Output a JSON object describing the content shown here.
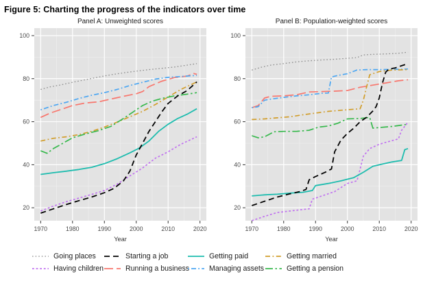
{
  "figure": {
    "title": "Figure 5: Charting the progress of the indicators over time"
  },
  "colors": {
    "panel_bg": "#e3e3e3",
    "grid_major": "#ffffff",
    "grid_minor": "#ededed",
    "tick": "#333333",
    "tick_label": "#4a4a4a",
    "panel_title": "#1a1a1a",
    "axis_label": "#333333"
  },
  "chart_data": {
    "type": "line",
    "xlabel": "Year",
    "x_ticks": [
      1970,
      1980,
      1990,
      2000,
      2010,
      2020
    ],
    "y_ticks": [
      20,
      40,
      60,
      80,
      100
    ],
    "x_minor": [
      1975,
      1985,
      1995,
      2005,
      2015
    ],
    "y_minor": [
      30,
      50,
      70,
      90
    ],
    "x_range": [
      1968,
      2022
    ],
    "y_range": [
      14,
      103.5
    ],
    "legend_order": [
      "going_places",
      "starting_job",
      "getting_paid",
      "getting_married",
      "having_children",
      "running_business",
      "managing_assets",
      "getting_pension"
    ],
    "draw_order": [
      "going_places",
      "running_business",
      "managing_assets",
      "getting_married",
      "getting_pension",
      "having_children",
      "getting_paid",
      "starting_job"
    ],
    "series_styles": {
      "going_places": {
        "label": "Going places",
        "color": "#8b8b8b",
        "dash": "1.6 3",
        "width": 1.3
      },
      "starting_job": {
        "label": "Starting a job",
        "color": "#000000",
        "dash": "8 5",
        "width": 1.8
      },
      "getting_paid": {
        "label": "Getting paid",
        "color": "#1cbcae",
        "dash": "",
        "width": 1.8
      },
      "getting_married": {
        "label": "Getting married",
        "color": "#d19d2a",
        "dash": "7 3.5 1.8 3.5",
        "width": 1.7
      },
      "having_children": {
        "label": "Having children",
        "color": "#c070f0",
        "dash": "2.8 2.8",
        "width": 1.7
      },
      "running_business": {
        "label": "Running a business",
        "color": "#f8766d",
        "dash": "13 5",
        "width": 1.7
      },
      "managing_assets": {
        "label": "Managing assets",
        "color": "#4ba6f2",
        "dash": "1.8 3.2 7 3.2",
        "width": 1.7
      },
      "getting_pension": {
        "label": "Getting a pension",
        "color": "#35b84b",
        "dash": "11 3.5 2.5 3.5",
        "width": 1.7
      }
    },
    "panels": [
      {
        "title": "Panel A: Unweighted scores",
        "series": {
          "going_places": {
            "x": [
              1970,
              1973,
              1976,
              1980,
              1984,
              1988,
              1992,
              1996,
              2000,
              2004,
              2008,
              2012,
              2016,
              2019
            ],
            "y": [
              75,
              76.2,
              77,
              78.3,
              79.5,
              80.7,
              81.8,
              82.7,
              83.5,
              84.2,
              84.8,
              85.4,
              86.3,
              87
            ]
          },
          "running_business": {
            "x": [
              1970,
              1973,
              1976,
              1980,
              1984,
              1988,
              1992,
              1996,
              2000,
              2002,
              2004,
              2008,
              2012,
              2016,
              2018,
              2019
            ],
            "y": [
              62,
              64,
              65.5,
              67.5,
              68.7,
              69.2,
              70.5,
              71.8,
              73,
              74,
              76.3,
              78.8,
              80.5,
              81.2,
              82.4,
              82
            ]
          },
          "managing_assets": {
            "x": [
              1970,
              1974,
              1978,
              1982,
              1986,
              1990,
              1994,
              1998,
              2002,
              2006,
              2010,
              2014,
              2019
            ],
            "y": [
              65.5,
              67.5,
              69,
              70.8,
              72.3,
              73.5,
              75,
              76.8,
              78.3,
              79.8,
              80.6,
              81,
              81.5
            ]
          },
          "getting_married": {
            "x": [
              1970,
              1974,
              1978,
              1982,
              1986,
              1990,
              1994,
              1998,
              2002,
              2006,
              2010,
              2014,
              2019
            ],
            "y": [
              51,
              52.3,
              53,
              54,
              55.5,
              57.5,
              59.8,
              62.3,
              64.8,
              68,
              71.5,
              75,
              78.5
            ]
          },
          "getting_pension": {
            "x": [
              1970,
              1972,
              1974,
              1977,
              1980,
              1984,
              1988,
              1992,
              1996,
              1999,
              2002,
              2005,
              2008,
              2012,
              2016,
              2019
            ],
            "y": [
              46.5,
              45.3,
              47.5,
              50,
              52.5,
              54.3,
              55.8,
              57.8,
              61.5,
              64.5,
              67.5,
              69.5,
              70.8,
              72,
              72.8,
              73.5
            ]
          },
          "having_children": {
            "x": [
              1970,
              1974,
              1978,
              1982,
              1986,
              1990,
              1994,
              1998,
              2002,
              2006,
              2010,
              2014,
              2019
            ],
            "y": [
              18.5,
              20.8,
              22.8,
              24.5,
              26.2,
              28,
              31,
              34.8,
              38.5,
              43,
              46,
              49.5,
              53
            ]
          },
          "getting_paid": {
            "x": [
              1970,
              1974,
              1978,
              1982,
              1986,
              1990,
              1994,
              1998,
              2001,
              2004,
              2007,
              2010,
              2013,
              2016,
              2019
            ],
            "y": [
              35.5,
              36.3,
              37,
              37.8,
              38.8,
              40.5,
              42.8,
              45.5,
              47.8,
              51,
              55.5,
              58.8,
              61.5,
              63.5,
              66
            ]
          },
          "starting_job": {
            "x": [
              1970,
              1974,
              1978,
              1982,
              1986,
              1990,
              1993,
              1996,
              1998,
              2000,
              2002,
              2004,
              2006,
              2008,
              2010,
              2013,
              2016,
              2019
            ],
            "y": [
              17.5,
              19.5,
              21.5,
              23.3,
              25,
              27,
              29,
              32.5,
              37,
              44.5,
              50,
              55.5,
              60,
              64.5,
              68.5,
              72,
              74.5,
              78.5
            ]
          }
        }
      },
      {
        "title": "Panel B: Population-weighted scores",
        "series": {
          "going_places": {
            "x": [
              1970,
              1973,
              1976,
              1980,
              1984,
              1988,
              1992,
              1996,
              2000,
              2003,
              2005,
              2008,
              2012,
              2016,
              2019
            ],
            "y": [
              84,
              85.3,
              86.3,
              87,
              87.8,
              88.3,
              88.7,
              89,
              89.5,
              89.8,
              91,
              91.3,
              91.5,
              91.8,
              92.3
            ]
          },
          "running_business": {
            "x": [
              1970,
              1972,
              1974,
              1976,
              1980,
              1984,
              1988,
              1992,
              1996,
              2000,
              2004,
              2008,
              2012,
              2016,
              2019
            ],
            "y": [
              66.5,
              67.5,
              71,
              71.8,
              72,
              72.5,
              73.8,
              74,
              74.2,
              74.5,
              76,
              77,
              78,
              79,
              79.5
            ]
          },
          "managing_assets": {
            "x": [
              1970,
              1972,
              1974,
              1976,
              1980,
              1984,
              1988,
              1992,
              1994,
              1995,
              1997,
              2000,
              2003,
              2006,
              2010,
              2014,
              2019
            ],
            "y": [
              66.5,
              67,
              70,
              70.5,
              71.3,
              72,
              72.5,
              73.2,
              73.3,
              80.8,
              81.5,
              82.3,
              84,
              84.2,
              84.2,
              84.3,
              84.5
            ]
          },
          "getting_married": {
            "x": [
              1970,
              1974,
              1978,
              1982,
              1986,
              1990,
              1994,
              1998,
              2002,
              2004,
              2005,
              2006,
              2007,
              2010,
              2014,
              2019
            ],
            "y": [
              61,
              61.3,
              61.8,
              62.3,
              63.2,
              64,
              64.8,
              65.3,
              65.8,
              66,
              70,
              76,
              81.8,
              83.3,
              84,
              84.2
            ]
          },
          "getting_pension": {
            "x": [
              1970,
              1972,
              1974,
              1977,
              1980,
              1984,
              1988,
              1991,
              1994,
              1997,
              2000,
              2004,
              2007,
              2008,
              2010,
              2014,
              2019
            ],
            "y": [
              53.5,
              52.5,
              53,
              55.3,
              55.5,
              55.5,
              56,
              57.5,
              58,
              59.3,
              61.3,
              61.5,
              62,
              57,
              57.3,
              57.8,
              58.8
            ]
          },
          "having_children": {
            "x": [
              1970,
              1974,
              1978,
              1982,
              1986,
              1988,
              1989,
              1992,
              1996,
              2000,
              2003,
              2004,
              2005,
              2007,
              2010,
              2013,
              2016,
              2017,
              2019
            ],
            "y": [
              14,
              16,
              17.8,
              18.5,
              19.2,
              19.5,
              24,
              25.5,
              27.5,
              31.3,
              32.5,
              38,
              44,
              47.5,
              49.5,
              50.8,
              52,
              56,
              59.8
            ]
          },
          "getting_paid": {
            "x": [
              1970,
              1974,
              1978,
              1982,
              1986,
              1989,
              1990,
              1994,
              1998,
              2002,
              2005,
              2008,
              2011,
              2014,
              2017,
              2018,
              2019
            ],
            "y": [
              25.5,
              26,
              26.3,
              26.8,
              27.2,
              28,
              30.3,
              31.3,
              32.5,
              34,
              36.5,
              39.3,
              40.3,
              41.3,
              42,
              47,
              47.5
            ]
          },
          "starting_job": {
            "x": [
              1970,
              1974,
              1978,
              1982,
              1985,
              1987,
              1988,
              1990,
              1993,
              1995,
              1996,
              1998,
              2000,
              2002,
              2004,
              2006,
              2008,
              2009,
              2010,
              2011,
              2012,
              2013,
              2015,
              2017,
              2019
            ],
            "y": [
              21,
              23,
              25,
              26.5,
              27.5,
              28.5,
              33,
              34.5,
              36.5,
              38,
              46,
              51.5,
              54.5,
              57,
              60,
              62,
              65,
              67,
              71,
              78,
              83,
              84.5,
              85,
              86,
              87
            ]
          }
        }
      }
    ]
  }
}
